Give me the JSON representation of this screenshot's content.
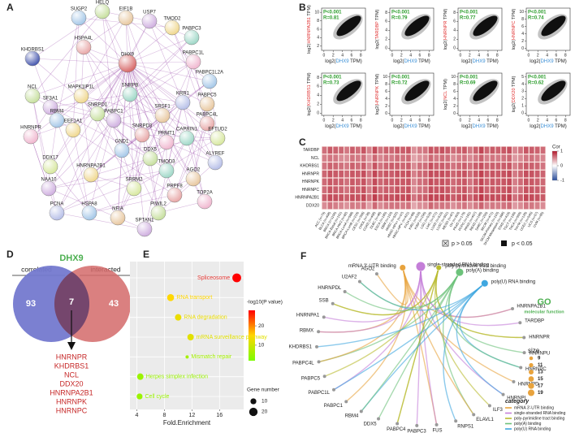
{
  "A": {
    "label": "A",
    "nodes": [
      "SUGP2",
      "HELQ",
      "EIF1B",
      "USP7",
      "TMOD2",
      "PABPC3",
      "HSPA4L",
      "KHDRBS1",
      "DHX9",
      "PABPC1L",
      "PABPC1L2A",
      "NCL",
      "PABPC5",
      "SF3A1",
      "MAPK1IP1L",
      "SNRPB",
      "PABPC4L",
      "KRR1",
      "EFTUD2",
      "HNRNPR",
      "RBM4",
      "SNRPD1",
      "SRSF1",
      "PABPC1",
      "EEF1A1",
      "CAPRIN1",
      "SNRPD3",
      "ALYREF",
      "DDX17",
      "PRMT1",
      "GND1",
      "DDX5",
      "AGO2",
      "NAA10",
      "HNRNPA2B1",
      "TMOD3",
      "PRPF8",
      "PCNA",
      "SRRM2",
      "TOP2A",
      "HSPA8",
      "PIWIL2",
      "NFIA",
      "SPTAN1"
    ]
  },
  "B": {
    "label": "B",
    "p": "P<0.001",
    "label_prefix": "log2(",
    "label_suffix": " TPM)",
    "x_gene": "DHX9",
    "xlim": [
      -0.5,
      9
    ],
    "xticks": [
      0,
      2,
      4,
      6,
      8
    ],
    "plots": [
      {
        "gene": "HNRNPA2B1",
        "r": "R=0.81",
        "ylim": [
          1,
          11
        ],
        "yticks": [
          2,
          4,
          6,
          8,
          10
        ]
      },
      {
        "gene": "TARDBP",
        "r": "R=0.79",
        "ylim": [
          -0.5,
          9
        ],
        "yticks": [
          0,
          2,
          4,
          6,
          8
        ]
      },
      {
        "gene": "HNRNPR",
        "r": "R=0.77",
        "ylim": [
          -0.5,
          9
        ],
        "yticks": [
          0,
          2,
          4,
          6,
          8
        ]
      },
      {
        "gene": "HNRNPC",
        "r": "R=0.74",
        "ylim": [
          -0.5,
          11
        ],
        "yticks": [
          0,
          2,
          4,
          6,
          8,
          10
        ]
      },
      {
        "gene": "KHDRBS1",
        "r": "R=0.73",
        "ylim": [
          -0.5,
          9
        ],
        "yticks": [
          0,
          2,
          4,
          6,
          8
        ]
      },
      {
        "gene": "HNRNPK",
        "r": "R=0.72",
        "ylim": [
          -0.5,
          11
        ],
        "yticks": [
          0,
          2,
          4,
          6,
          8,
          10
        ]
      },
      {
        "gene": "NCL",
        "r": "R=0.69",
        "ylim": [
          -0.5,
          11
        ],
        "yticks": [
          0,
          2,
          4,
          6,
          8,
          10
        ]
      },
      {
        "gene": "DDX20",
        "r": "R=0.62",
        "ylim": [
          -0.3,
          5.5
        ],
        "yticks": [
          0,
          1,
          2,
          3,
          4,
          5
        ]
      }
    ]
  },
  "C": {
    "label": "C",
    "legend_title": "Cor",
    "legend_ticks": [
      1,
      0,
      -1
    ],
    "p_high": "p > 0.05",
    "p_low": "p < 0.05",
    "rows": [
      "TARDBP",
      "NCL",
      "KHDRBS1",
      "HNRNPR",
      "HNRNPK",
      "HNRNPC",
      "HNRNPA2B1",
      "DDX20"
    ],
    "columns": [
      "ACC (n=79)",
      "BLCA (n=408)",
      "BRCA (n=1100)",
      "BRCA-Basal (n=191)",
      "BRCA-Her2 (n=82)",
      "BRCA-LumA (n=568)",
      "BRCA-LumB (n=219)",
      "CESC (n=306)",
      "CHOL (n=36)",
      "COAD (n=458)",
      "DLBC (n=48)",
      "ESCA (n=185)",
      "GBM (n=153)",
      "HNSC (n=522)",
      "HNSC-HPV+ (n=97)",
      "HNSC-HPV- (n=421)",
      "KICH (n=66)",
      "KIRC (n=533)",
      "KIRP (n=290)",
      "LGG (n=516)",
      "LIHC (n=371)",
      "LUAD (n=515)",
      "LUSC (n=501)",
      "MESO (n=87)",
      "OV (n=303)",
      "PAAD (n=179)",
      "PCPG (n=181)",
      "PRAD (n=497)",
      "READ (n=166)",
      "SARC (n=259)",
      "SKCM (n=471)",
      "SKCM-Primary (n=103)",
      "SKCM-Metastasis (n=368)",
      "STAD (n=415)",
      "TGCT (n=150)",
      "THCA (n=509)",
      "THYM (n=120)",
      "UCEC (n=545)",
      "UCS (n=57)",
      "UVM (n=80)"
    ],
    "values": [
      [
        0.62,
        0.71,
        0.68,
        0.66,
        0.59,
        0.7,
        0.64,
        0.73,
        0.55,
        0.78,
        0.61,
        0.69,
        0.66,
        0.72,
        0.7,
        0.73,
        0.48,
        0.57,
        0.6,
        0.74,
        0.71,
        0.75,
        0.7,
        0.63,
        0.67,
        0.72,
        0.58,
        0.69,
        0.8,
        0.66,
        0.71,
        0.69,
        0.72,
        0.76,
        0.52,
        0.6,
        0.73,
        0.7,
        0.68,
        0.64
      ],
      [
        0.55,
        0.6,
        0.58,
        0.5,
        0.49,
        0.61,
        0.57,
        0.62,
        0.44,
        0.66,
        0.52,
        0.6,
        0.57,
        0.63,
        0.61,
        0.64,
        0.4,
        0.47,
        0.5,
        0.65,
        0.58,
        0.64,
        0.62,
        0.5,
        0.56,
        0.6,
        0.51,
        0.58,
        0.69,
        0.55,
        0.6,
        0.57,
        0.61,
        0.66,
        0.45,
        0.5,
        0.6,
        0.62,
        0.57,
        0.53
      ],
      [
        0.6,
        0.68,
        0.66,
        0.62,
        0.58,
        0.69,
        0.63,
        0.7,
        0.52,
        0.74,
        0.6,
        0.67,
        0.7,
        0.69,
        0.66,
        0.7,
        0.5,
        0.62,
        0.63,
        0.76,
        0.68,
        0.7,
        0.67,
        0.6,
        0.65,
        0.7,
        0.62,
        0.7,
        0.76,
        0.66,
        0.69,
        0.68,
        0.7,
        0.73,
        0.55,
        0.64,
        0.71,
        0.69,
        0.66,
        0.6
      ],
      [
        0.66,
        0.74,
        0.72,
        0.7,
        0.65,
        0.73,
        0.7,
        0.76,
        0.6,
        0.8,
        0.68,
        0.73,
        0.7,
        0.75,
        0.73,
        0.76,
        0.55,
        0.64,
        0.67,
        0.78,
        0.75,
        0.77,
        0.74,
        0.66,
        0.71,
        0.75,
        0.63,
        0.72,
        0.82,
        0.7,
        0.74,
        0.72,
        0.75,
        0.79,
        0.58,
        0.66,
        0.76,
        0.74,
        0.7,
        0.67
      ],
      [
        0.64,
        0.72,
        0.7,
        0.68,
        0.62,
        0.72,
        0.68,
        0.74,
        0.58,
        0.78,
        0.66,
        0.71,
        0.7,
        0.73,
        0.72,
        0.74,
        0.52,
        0.62,
        0.65,
        0.77,
        0.72,
        0.75,
        0.72,
        0.64,
        0.69,
        0.73,
        0.6,
        0.7,
        0.8,
        0.68,
        0.72,
        0.7,
        0.73,
        0.77,
        0.56,
        0.64,
        0.74,
        0.72,
        0.69,
        0.65
      ],
      [
        0.63,
        0.73,
        0.7,
        0.67,
        0.61,
        0.72,
        0.68,
        0.75,
        0.57,
        0.79,
        0.64,
        0.7,
        0.68,
        0.74,
        0.71,
        0.75,
        0.5,
        0.6,
        0.63,
        0.76,
        0.73,
        0.76,
        0.72,
        0.65,
        0.69,
        0.74,
        0.6,
        0.71,
        0.81,
        0.67,
        0.72,
        0.71,
        0.73,
        0.78,
        0.54,
        0.62,
        0.75,
        0.73,
        0.7,
        0.66
      ],
      [
        0.7,
        0.78,
        0.76,
        0.74,
        0.69,
        0.77,
        0.74,
        0.8,
        0.64,
        0.84,
        0.72,
        0.77,
        0.75,
        0.79,
        0.77,
        0.8,
        0.6,
        0.68,
        0.71,
        0.82,
        0.79,
        0.81,
        0.78,
        0.7,
        0.75,
        0.79,
        0.67,
        0.76,
        0.86,
        0.74,
        0.78,
        0.76,
        0.79,
        0.83,
        0.62,
        0.7,
        0.8,
        0.78,
        0.75,
        0.71
      ],
      [
        0.5,
        0.6,
        0.56,
        0.52,
        0.47,
        0.58,
        0.55,
        0.6,
        0.42,
        0.65,
        0.5,
        0.57,
        0.6,
        0.6,
        0.57,
        0.61,
        0.38,
        0.48,
        0.5,
        0.66,
        0.58,
        0.6,
        0.58,
        0.48,
        0.55,
        0.6,
        0.5,
        0.57,
        0.67,
        0.54,
        0.58,
        0.56,
        0.6,
        0.64,
        0.44,
        0.5,
        0.6,
        0.59,
        0.55,
        0.5
      ]
    ]
  },
  "D": {
    "label": "D",
    "title": "DHX9",
    "left": "correlated",
    "right": "interacted",
    "left_only": "93",
    "both": "7",
    "right_only": "43",
    "genes": [
      "HNRNPR",
      "KHDRBS1",
      "NCL",
      "DDX20",
      "HNRNPA2B1",
      "HNRNPK",
      "HNRNPC"
    ]
  },
  "E": {
    "label": "E",
    "x_label": "Fold.Enrichment",
    "xlim": [
      3,
      19.5
    ],
    "xticks": [
      4,
      8,
      12,
      16
    ],
    "categories": [
      "Spliceosome",
      "RNA transport",
      "RNA degradation",
      "mRNA surveillance pathway",
      "Mismatch repair",
      "Herpes simplex infection",
      "Cell cycle"
    ],
    "fold": [
      18.5,
      8.9,
      10,
      11.8,
      11.3,
      4.5,
      4.4
    ],
    "logp": [
      28,
      15,
      13,
      12,
      6,
      5,
      5
    ],
    "count": [
      22,
      14,
      12,
      12,
      3,
      12,
      10
    ],
    "color_title": "-log10(P value)",
    "color_lim": [
      2,
      28
    ],
    "color_ticks": [
      10,
      20
    ],
    "size_title": "Gene number",
    "size_ticks": [
      10,
      20
    ]
  },
  "F": {
    "label": "F",
    "go_title": "GO",
    "go_subtitle": "molecular function",
    "size_title": "size",
    "size_ticks": [
      9,
      11,
      13,
      15,
      17,
      19
    ],
    "category_title": "category",
    "genes": [
      "HNRNPA2B1",
      "TARDBP",
      "HNRNPR",
      "HNRNPU",
      "HNRNPC",
      "HNRNPD",
      "HNRNPL",
      "ILF3",
      "ELAVL1",
      "RNPS1",
      "FUS",
      "PABPC3",
      "PABPC4",
      "DDX5",
      "RBM4",
      "PABPC1",
      "PABPC1L",
      "PABPC5",
      "PABPC4L",
      "KHDRBS1",
      "RBMX",
      "HNRNPA1",
      "SSB",
      "HNRNPDL",
      "U2AF2",
      "AGO2"
    ],
    "terms": [
      {
        "name": "mRNA 3'-UTR binding",
        "size": 11,
        "color": "#e8a33d"
      },
      {
        "name": "single-stranded RNA binding",
        "size": 19,
        "color": "#c47ed8"
      },
      {
        "name": "poly-pyrimidine tract binding",
        "size": 9,
        "color": "#b9bb2e"
      },
      {
        "name": "poly(A) binding",
        "size": 15,
        "color": "#6cc27a"
      },
      {
        "name": "poly(U) RNA binding",
        "size": 13,
        "color": "#3fa7e0"
      }
    ]
  }
}
